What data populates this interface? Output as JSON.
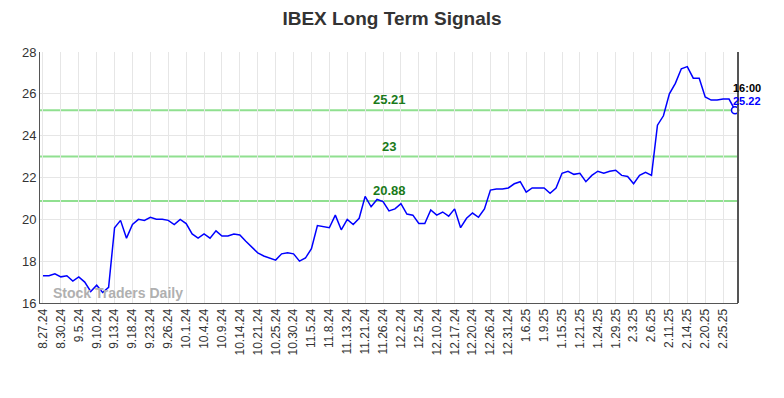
{
  "chart_data": {
    "type": "line",
    "title": "IBEX Long Term Signals",
    "categories": [
      "8.27.24",
      null,
      null,
      "8.30.24",
      null,
      null,
      "9.5.24",
      null,
      null,
      "9.10.24",
      null,
      null,
      "9.13.24",
      null,
      null,
      "9.18.24",
      null,
      null,
      "9.23.24",
      null,
      null,
      "9.26.24",
      null,
      null,
      "10.1.24",
      null,
      null,
      "10.4.24",
      null,
      null,
      "10.9.24",
      null,
      null,
      "10.14.24",
      null,
      null,
      "10.21.24",
      null,
      null,
      "10.25.24",
      null,
      null,
      "10.30.24",
      null,
      null,
      "11.5.24",
      null,
      null,
      "11.8.24",
      null,
      null,
      "11.13.24",
      null,
      null,
      "11.21.24",
      null,
      null,
      "11.26.24",
      null,
      null,
      "12.2.24",
      null,
      null,
      "12.5.24",
      null,
      null,
      "12.10.24",
      null,
      null,
      "12.17.24",
      null,
      null,
      "12.20.24",
      null,
      null,
      "12.26.24",
      null,
      null,
      "12.31.24",
      null,
      null,
      "1.6.25",
      null,
      null,
      "1.9.25",
      null,
      null,
      "1.15.25",
      null,
      null,
      "1.21.25",
      null,
      null,
      "1.24.25",
      null,
      null,
      "1.29.25",
      null,
      null,
      "2.3.25",
      null,
      null,
      "2.6.25",
      null,
      null,
      "2.11.25",
      null,
      null,
      "2.14.25",
      null,
      null,
      "2.20.25",
      null,
      null,
      "2.25.25",
      null,
      null
    ],
    "values": [
      17.3,
      17.3,
      17.4,
      17.25,
      17.3,
      17.05,
      17.25,
      17.0,
      16.55,
      16.85,
      16.5,
      16.75,
      19.6,
      19.95,
      19.1,
      19.75,
      20.0,
      19.95,
      20.1,
      20.0,
      20.0,
      19.95,
      19.75,
      20.0,
      19.8,
      19.3,
      19.1,
      19.3,
      19.1,
      19.45,
      19.2,
      19.2,
      19.3,
      19.25,
      18.95,
      18.65,
      18.4,
      18.25,
      18.15,
      18.05,
      18.35,
      18.4,
      18.35,
      18.0,
      18.15,
      18.6,
      19.7,
      19.65,
      19.6,
      20.2,
      19.5,
      20.0,
      19.75,
      20.05,
      21.1,
      20.6,
      20.95,
      20.85,
      20.4,
      20.5,
      20.75,
      20.25,
      20.2,
      19.8,
      19.8,
      20.45,
      20.2,
      20.35,
      20.15,
      20.5,
      19.6,
      20.05,
      20.3,
      20.1,
      20.5,
      21.4,
      21.45,
      21.45,
      21.5,
      21.7,
      21.8,
      21.3,
      21.5,
      21.5,
      21.5,
      21.25,
      21.5,
      22.2,
      22.3,
      22.15,
      22.2,
      21.8,
      22.1,
      22.3,
      22.2,
      22.3,
      22.35,
      22.1,
      22.05,
      21.7,
      22.1,
      22.25,
      22.1,
      24.5,
      24.95,
      26.0,
      26.5,
      27.2,
      27.3,
      26.75,
      26.75,
      25.85,
      25.7,
      25.7,
      25.75,
      25.75,
      25.22
    ],
    "color": "#0000ff",
    "ylim": [
      16,
      28
    ],
    "yticks": [
      16,
      18,
      20,
      22,
      24,
      26,
      28
    ],
    "grid": true,
    "reference_lines": [
      {
        "value": 25.21,
        "label": "25.21",
        "color": "#90e090"
      },
      {
        "value": 23,
        "label": "23",
        "color": "#90e090"
      },
      {
        "value": 20.88,
        "label": "20.88",
        "color": "#90e090"
      }
    ],
    "last_point": {
      "time": "16:00",
      "value_label": "25.22"
    },
    "watermark": "Stock Traders Daily"
  }
}
